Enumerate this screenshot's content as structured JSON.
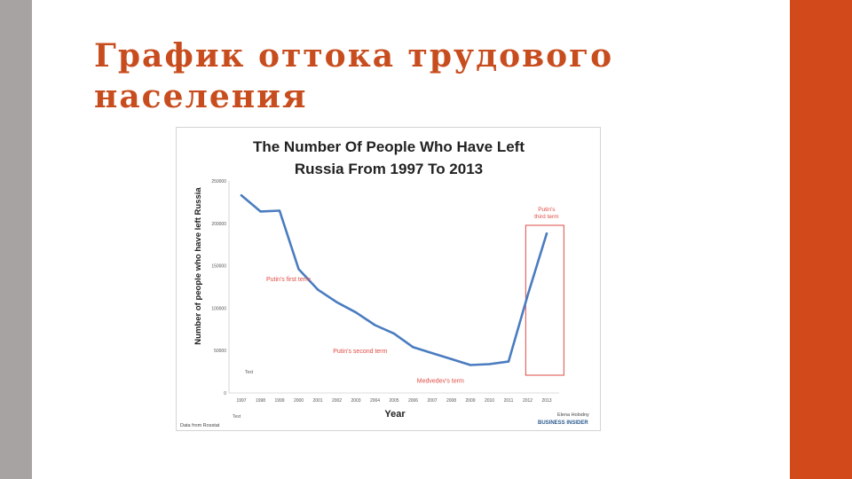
{
  "slide": {
    "title": "График оттока трудового населения",
    "colors": {
      "accent": "#d24a1b",
      "left_bar": "#a7a3a3",
      "title": "#c84d1e"
    }
  },
  "chart_data": {
    "type": "line",
    "title_lines": [
      "The Number Of People Who Have Left",
      "Russia From 1997 To 2013"
    ],
    "xlabel": "Year",
    "ylabel": "Number of people who have left Russia",
    "x": [
      1997,
      1998,
      1999,
      2000,
      2001,
      2002,
      2003,
      2004,
      2005,
      2006,
      2007,
      2008,
      2009,
      2010,
      2011,
      2012,
      2013
    ],
    "x_tick_labels": [
      "1997",
      "1998",
      "1999",
      "2000",
      "2001",
      "2002",
      "2003",
      "2004",
      "2005",
      "2006",
      "2007",
      "2008",
      "2009",
      "2010",
      "2011",
      "2012",
      "2013"
    ],
    "series": [
      {
        "values": [
          233000,
          214000,
          215000,
          146000,
          122000,
          107000,
          95000,
          80000,
          70000,
          54000,
          47000,
          40000,
          33000,
          34000,
          37000,
          115000,
          188000
        ],
        "color": "#4a7cc0"
      }
    ],
    "ylim": [
      0,
      250000
    ],
    "y_ticks": [
      0,
      50000,
      100000,
      150000,
      200000,
      250000
    ],
    "y_tick_labels": [
      "0",
      "50000",
      "100000",
      "150000",
      "200000",
      "250000"
    ],
    "grid": false,
    "annotations": [
      {
        "text": "Putin's first term",
        "x": 1998.3,
        "y": 132000
      },
      {
        "text": "Putin's second term",
        "x": 2001.8,
        "y": 47000
      },
      {
        "text": "Medvedev's term",
        "x": 2006.2,
        "y": 12000
      }
    ],
    "highlight": {
      "text_lines": [
        "Putin's",
        "third term"
      ],
      "x_range": [
        2011.9,
        2013.9
      ],
      "y_range": [
        0,
        250000
      ]
    },
    "annotation_color": "#e04a43",
    "stray_labels": [
      "Text",
      "Text"
    ],
    "source_note": "Data from Rosstat",
    "credit": {
      "author": "Elena Holodny",
      "publisher": "BUSINESS INSIDER"
    }
  }
}
